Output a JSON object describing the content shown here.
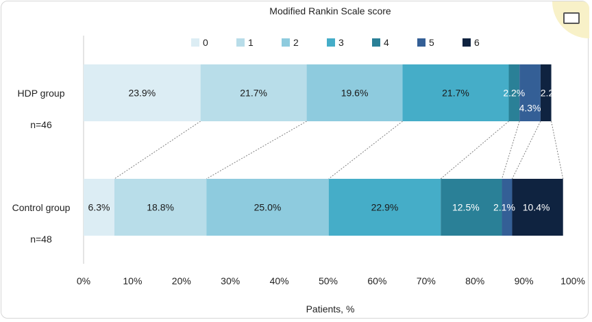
{
  "chart_data": {
    "type": "bar",
    "orientation": "horizontal",
    "stacked": true,
    "title": "Modified Rankin Scale score",
    "xlabel": "Patients, %",
    "ylabel": "",
    "xlim": [
      0,
      100
    ],
    "x_ticks": [
      "0%",
      "10%",
      "20%",
      "30%",
      "40%",
      "50%",
      "60%",
      "70%",
      "80%",
      "90%",
      "100%"
    ],
    "grid": false,
    "legend_position": "top",
    "categories": [
      {
        "label": "HDP group",
        "sublabel": "n=46"
      },
      {
        "label": "Control group",
        "sublabel": "n=48"
      }
    ],
    "series": [
      {
        "name": "0",
        "color": "#dcedf4",
        "values": [
          23.9,
          6.3
        ],
        "labels": [
          "23.9%",
          "6.3%"
        ]
      },
      {
        "name": "1",
        "color": "#b8dde9",
        "values": [
          21.7,
          18.8
        ],
        "labels": [
          "21.7%",
          "18.8%"
        ]
      },
      {
        "name": "2",
        "color": "#8ecbde",
        "values": [
          19.6,
          25.0
        ],
        "labels": [
          "19.6%",
          "25.0%"
        ]
      },
      {
        "name": "3",
        "color": "#45adc8",
        "values": [
          21.7,
          22.9
        ],
        "labels": [
          "21.7%",
          "22.9%"
        ]
      },
      {
        "name": "4",
        "color": "#2a8097",
        "values": [
          2.2,
          12.5
        ],
        "labels": [
          "2.2%",
          "12.5%"
        ]
      },
      {
        "name": "5",
        "color": "#345f96",
        "values": [
          4.3,
          2.1
        ],
        "labels": [
          "4.3%",
          "2.1%"
        ]
      },
      {
        "name": "6",
        "color": "#0f2340",
        "values": [
          2.2,
          10.4
        ],
        "labels": [
          "2.2%",
          "10.4%"
        ]
      }
    ]
  },
  "ui": {
    "expand_icon": "expand-icon"
  }
}
